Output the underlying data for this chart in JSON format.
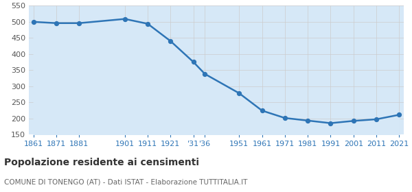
{
  "years": [
    1861,
    1871,
    1881,
    1901,
    1911,
    1921,
    1931,
    1936,
    1951,
    1961,
    1971,
    1981,
    1991,
    2001,
    2011,
    2021
  ],
  "population": [
    500,
    496,
    496,
    509,
    494,
    440,
    375,
    338,
    278,
    224,
    201,
    193,
    185,
    192,
    197,
    211
  ],
  "x_tick_labels": [
    "1861",
    "1871",
    "1881",
    "",
    "1901",
    "1911",
    "1921",
    "'31'36",
    "",
    "1951",
    "1961",
    "1971",
    "1981",
    "1991",
    "2001",
    "2011",
    "2021"
  ],
  "ylim": [
    150,
    550
  ],
  "yticks": [
    150,
    200,
    250,
    300,
    350,
    400,
    450,
    500,
    550
  ],
  "line_color": "#2E75B6",
  "fill_color": "#D6E8F7",
  "marker_color": "#2E75B6",
  "bg_color": "#FFFFFF",
  "grid_color": "#CCCCCC",
  "title": "Popolazione residente ai censimenti",
  "subtitle": "COMUNE DI TONENGO (AT) - Dati ISTAT - Elaborazione TUTTITALIA.IT",
  "title_color": "#333333",
  "subtitle_color": "#666666",
  "tick_color": "#2E75B6"
}
